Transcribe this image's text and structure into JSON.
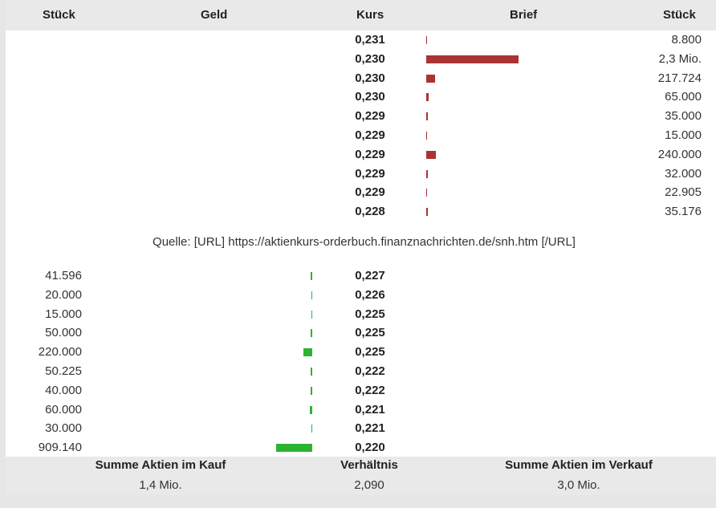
{
  "header": {
    "col_qty_left": "Stück",
    "col_bid": "Geld",
    "col_price": "Kurs",
    "col_ask": "Brief",
    "col_qty_right": "Stück"
  },
  "asks": [
    {
      "price": "0,231",
      "qty": "8.800",
      "bar": 0.0097
    },
    {
      "price": "0,230",
      "qty": "2,3 Mio.",
      "bar": 2.53
    },
    {
      "price": "0,230",
      "qty": "217.724",
      "bar": 0.2395
    },
    {
      "price": "0,230",
      "qty": "65.000",
      "bar": 0.0715
    },
    {
      "price": "0,229",
      "qty": "35.000",
      "bar": 0.0385
    },
    {
      "price": "0,229",
      "qty": "15.000",
      "bar": 0.0165
    },
    {
      "price": "0,229",
      "qty": "240.000",
      "bar": 0.264
    },
    {
      "price": "0,229",
      "qty": "32.000",
      "bar": 0.0352
    },
    {
      "price": "0,229",
      "qty": "22.905",
      "bar": 0.0252
    },
    {
      "price": "0,228",
      "qty": "35.176",
      "bar": 0.0387
    }
  ],
  "source": "Quelle: [URL] https://aktienkurs-orderbuch.finanznachrichten.de/snh.htm [/URL]",
  "bids": [
    {
      "qty": "41.596",
      "price": "0,227",
      "bar": 0.0458
    },
    {
      "qty": "20.000",
      "price": "0,226",
      "bar": 0.022
    },
    {
      "qty": "15.000",
      "price": "0,225",
      "bar": 0.0165
    },
    {
      "qty": "50.000",
      "price": "0,225",
      "bar": 0.055
    },
    {
      "qty": "220.000",
      "price": "0,225",
      "bar": 0.242
    },
    {
      "qty": "50.225",
      "price": "0,222",
      "bar": 0.0552
    },
    {
      "qty": "40.000",
      "price": "0,222",
      "bar": 0.044
    },
    {
      "qty": "60.000",
      "price": "0,221",
      "bar": 0.066
    },
    {
      "qty": "30.000",
      "price": "0,221",
      "bar": 0.033
    },
    {
      "qty": "909.140",
      "price": "0,220",
      "bar": 1.0
    }
  ],
  "footer": {
    "buy_label": "Summe Aktien im Kauf",
    "buy_value": "1,4 Mio.",
    "ratio_label": "Verhältnis",
    "ratio_value": "2,090",
    "sell_label": "Summe Aktien im Verkauf",
    "sell_value": "3,0 Mio."
  },
  "colors": {
    "ask_bar": "#a83434",
    "bid_bar": "#2eb234"
  }
}
